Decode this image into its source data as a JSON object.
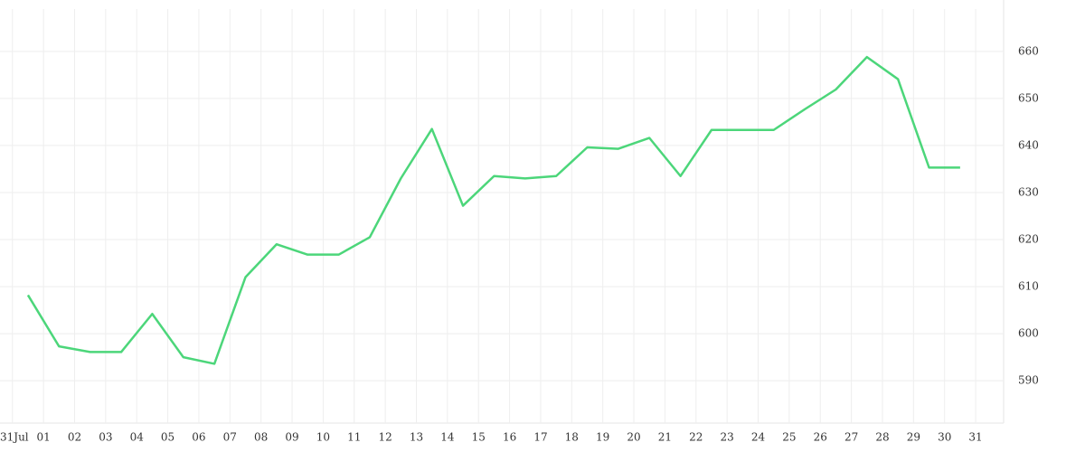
{
  "chart_data": {
    "type": "line",
    "color": "#4cd67a",
    "grid": true,
    "x": [
      0.5,
      1.5,
      2.5,
      3.5,
      4.5,
      5.5,
      6.5,
      7.5,
      8.5,
      9.5,
      10.5,
      11.5,
      12.5,
      13.5,
      14.5,
      15.5,
      16.5,
      17.5,
      18.5,
      19.5,
      20.5,
      21.5,
      22.5,
      23.5,
      24.5,
      25.5,
      26.5,
      27.5,
      28.5,
      29.5,
      30.5
    ],
    "values": [
      608.2,
      597.3,
      596.1,
      596.1,
      604.2,
      595.0,
      593.6,
      612.0,
      619.0,
      616.8,
      616.8,
      620.5,
      633.0,
      643.5,
      627.2,
      633.5,
      633.0,
      633.5,
      639.6,
      639.3,
      641.6,
      633.5,
      643.3,
      643.3,
      643.3,
      647.7,
      651.9,
      658.8,
      654.1,
      635.3,
      635.3
    ],
    "xlim": [
      -0.4,
      31.9
    ],
    "xticks": [
      {
        "value": 0,
        "label": "31Jul"
      },
      {
        "value": 1,
        "label": "01"
      },
      {
        "value": 2,
        "label": "02"
      },
      {
        "value": 3,
        "label": "03"
      },
      {
        "value": 4,
        "label": "04"
      },
      {
        "value": 5,
        "label": "05"
      },
      {
        "value": 6,
        "label": "06"
      },
      {
        "value": 7,
        "label": "07"
      },
      {
        "value": 8,
        "label": "08"
      },
      {
        "value": 9,
        "label": "09"
      },
      10,
      11,
      12,
      13,
      14,
      15,
      16,
      17,
      18,
      19,
      20,
      21,
      22,
      23,
      24,
      25,
      26,
      27,
      28,
      29,
      30,
      31
    ],
    "ylim": [
      581,
      669
    ],
    "yticks": [
      590,
      600,
      610,
      620,
      630,
      640,
      650,
      660
    ]
  }
}
